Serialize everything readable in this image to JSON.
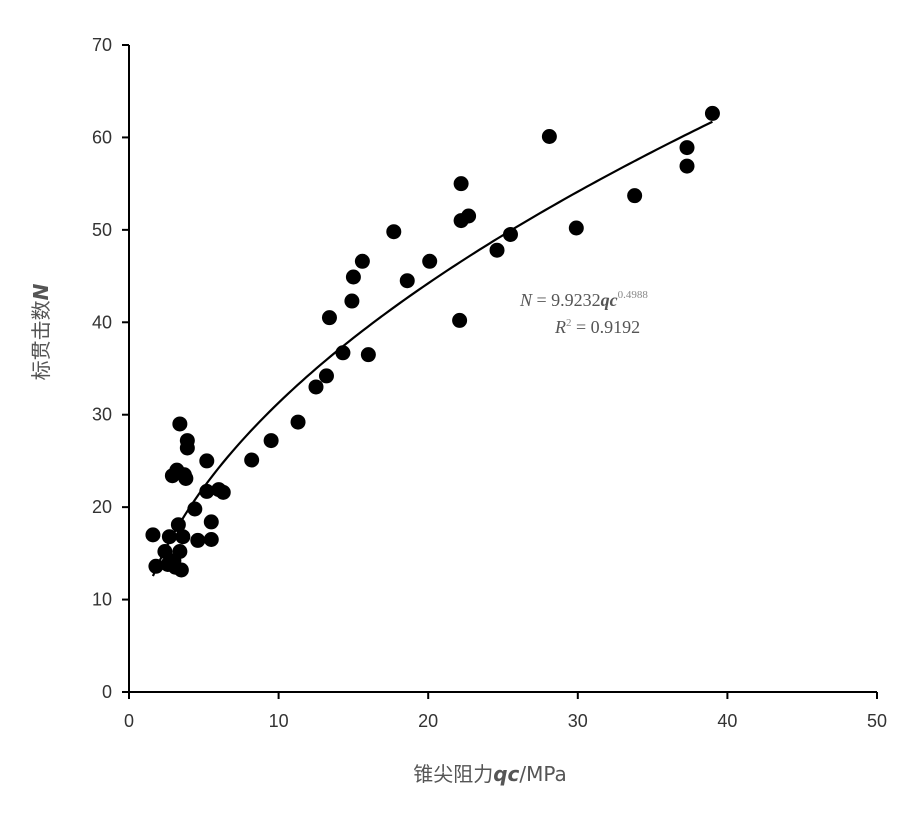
{
  "chart_data": {
    "type": "scatter",
    "xlabel_cn": "锥尖阻力",
    "xlabel_var": "qc",
    "xlabel_unit": "/MPa",
    "ylabel_cn": "标贯击数",
    "ylabel_var": "N",
    "xlim": [
      0,
      50
    ],
    "ylim": [
      0,
      70
    ],
    "xticks": [
      "0",
      "10",
      "20",
      "30",
      "40",
      "50"
    ],
    "yticks": [
      "0",
      "10",
      "20",
      "30",
      "40",
      "50",
      "60",
      "70"
    ],
    "grid": false,
    "legend": "none",
    "marker_color": "#000000",
    "fit": {
      "model": "power",
      "a": 9.9232,
      "b": 0.4988,
      "x_range": [
        1.6,
        39
      ],
      "equation_N": "N",
      "equation_mid": " = 9.9232",
      "equation_var": "qc",
      "equation_exp": "0.4988",
      "r2_label": "R",
      "r2_sup": "2",
      "r2_value": " = 0.9192"
    },
    "points": [
      {
        "x": 1.6,
        "y": 17.0
      },
      {
        "x": 1.8,
        "y": 13.6
      },
      {
        "x": 2.4,
        "y": 15.2
      },
      {
        "x": 2.6,
        "y": 13.8
      },
      {
        "x": 2.7,
        "y": 16.8
      },
      {
        "x": 2.9,
        "y": 23.4
      },
      {
        "x": 3.0,
        "y": 14.2
      },
      {
        "x": 3.1,
        "y": 13.5
      },
      {
        "x": 3.2,
        "y": 24.0
      },
      {
        "x": 3.3,
        "y": 18.1
      },
      {
        "x": 3.4,
        "y": 29.0
      },
      {
        "x": 3.4,
        "y": 15.2
      },
      {
        "x": 3.5,
        "y": 13.2
      },
      {
        "x": 3.6,
        "y": 16.8
      },
      {
        "x": 3.7,
        "y": 23.5
      },
      {
        "x": 3.8,
        "y": 23.1
      },
      {
        "x": 3.9,
        "y": 27.2
      },
      {
        "x": 3.9,
        "y": 26.4
      },
      {
        "x": 4.4,
        "y": 19.8
      },
      {
        "x": 4.6,
        "y": 16.4
      },
      {
        "x": 5.2,
        "y": 25.0
      },
      {
        "x": 5.2,
        "y": 21.7
      },
      {
        "x": 5.5,
        "y": 18.4
      },
      {
        "x": 5.5,
        "y": 16.5
      },
      {
        "x": 6.0,
        "y": 21.9
      },
      {
        "x": 6.3,
        "y": 21.6
      },
      {
        "x": 8.2,
        "y": 25.1
      },
      {
        "x": 9.5,
        "y": 27.2
      },
      {
        "x": 11.3,
        "y": 29.2
      },
      {
        "x": 12.5,
        "y": 33.0
      },
      {
        "x": 13.2,
        "y": 34.2
      },
      {
        "x": 13.4,
        "y": 40.5
      },
      {
        "x": 14.3,
        "y": 36.7
      },
      {
        "x": 14.9,
        "y": 42.3
      },
      {
        "x": 15.0,
        "y": 44.9
      },
      {
        "x": 15.6,
        "y": 46.6
      },
      {
        "x": 16.0,
        "y": 36.5
      },
      {
        "x": 17.7,
        "y": 49.8
      },
      {
        "x": 18.6,
        "y": 44.5
      },
      {
        "x": 20.1,
        "y": 46.6
      },
      {
        "x": 22.1,
        "y": 40.2
      },
      {
        "x": 22.2,
        "y": 55.0
      },
      {
        "x": 22.2,
        "y": 51.0
      },
      {
        "x": 22.7,
        "y": 51.5
      },
      {
        "x": 24.6,
        "y": 47.8
      },
      {
        "x": 25.5,
        "y": 49.5
      },
      {
        "x": 28.1,
        "y": 60.1
      },
      {
        "x": 29.9,
        "y": 50.2
      },
      {
        "x": 33.8,
        "y": 53.7
      },
      {
        "x": 37.3,
        "y": 58.9
      },
      {
        "x": 37.3,
        "y": 56.9
      },
      {
        "x": 39.0,
        "y": 62.6
      }
    ]
  }
}
